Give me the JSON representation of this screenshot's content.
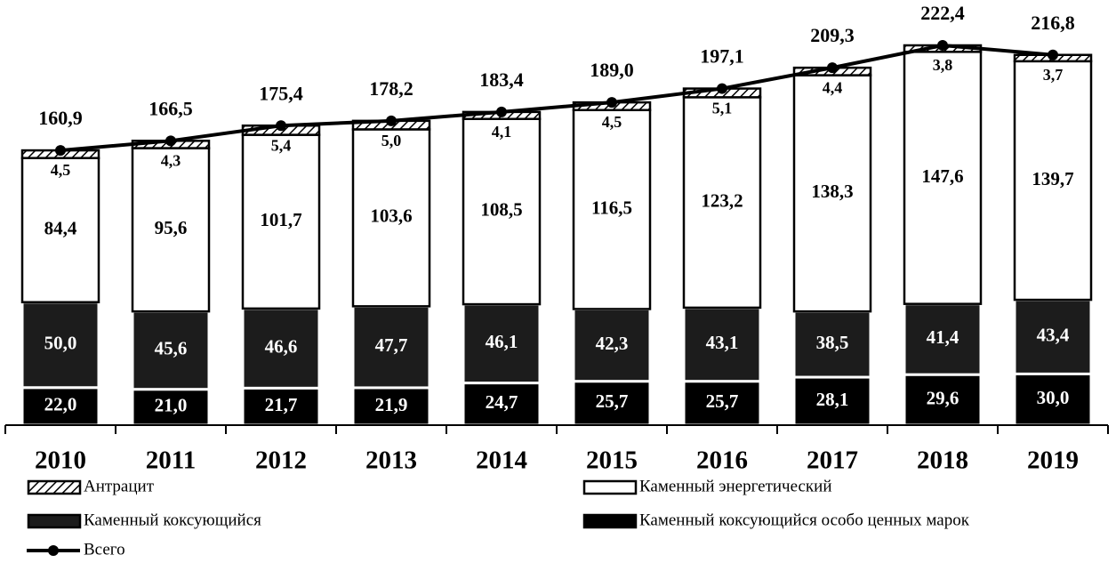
{
  "chart_data": {
    "type": "bar",
    "stacked": true,
    "categories": [
      "2010",
      "2011",
      "2012",
      "2013",
      "2014",
      "2015",
      "2016",
      "2017",
      "2018",
      "2019"
    ],
    "series": [
      {
        "name": "Каменный коксующийся особо ценных марок",
        "color": "#000000",
        "values": [
          22.0,
          21.0,
          21.7,
          21.9,
          24.7,
          25.7,
          25.7,
          28.1,
          29.6,
          30.0
        ],
        "value_labels": [
          "22,0",
          "21,0",
          "21,7",
          "21,9",
          "24,7",
          "25,7",
          "25,7",
          "28,1",
          "29,6",
          "30,0"
        ]
      },
      {
        "name": "Каменный коксующийся",
        "color": "#1c1c1c",
        "values": [
          50.0,
          45.6,
          46.6,
          47.7,
          46.1,
          42.3,
          43.1,
          38.5,
          41.4,
          43.4
        ],
        "value_labels": [
          "50,0",
          "45,6",
          "46,6",
          "47,7",
          "46,1",
          "42,3",
          "43,1",
          "38,5",
          "41,4",
          "43,4"
        ]
      },
      {
        "name": "Каменный энергетический",
        "color": "#ffffff",
        "values": [
          84.4,
          95.6,
          101.7,
          103.6,
          108.5,
          116.5,
          123.2,
          138.3,
          147.6,
          139.7
        ],
        "value_labels": [
          "84,4",
          "95,6",
          "101,7",
          "103,6",
          "108,5",
          "116,5",
          "123,2",
          "138,3",
          "147,6",
          "139,7"
        ]
      },
      {
        "name": "Антрацит",
        "color": "#000000",
        "hatch": true,
        "values": [
          4.5,
          4.3,
          5.4,
          5.0,
          4.1,
          4.5,
          5.1,
          4.4,
          3.8,
          3.7
        ],
        "value_labels": [
          "4,5",
          "4,3",
          "5,4",
          "5,0",
          "4,1",
          "4,5",
          "5,1",
          "4,4",
          "3,8",
          "3,7"
        ]
      },
      {
        "name": "Всего",
        "type": "line",
        "color": "#000000",
        "values": [
          160.9,
          166.5,
          175.4,
          178.2,
          183.4,
          189.0,
          197.1,
          209.3,
          222.4,
          216.8
        ],
        "value_labels": [
          "160,9",
          "166,5",
          "175,4",
          "178,2",
          "183,4",
          "189,0",
          "197,1",
          "209,3",
          "222,4",
          "216,8"
        ]
      }
    ]
  }
}
